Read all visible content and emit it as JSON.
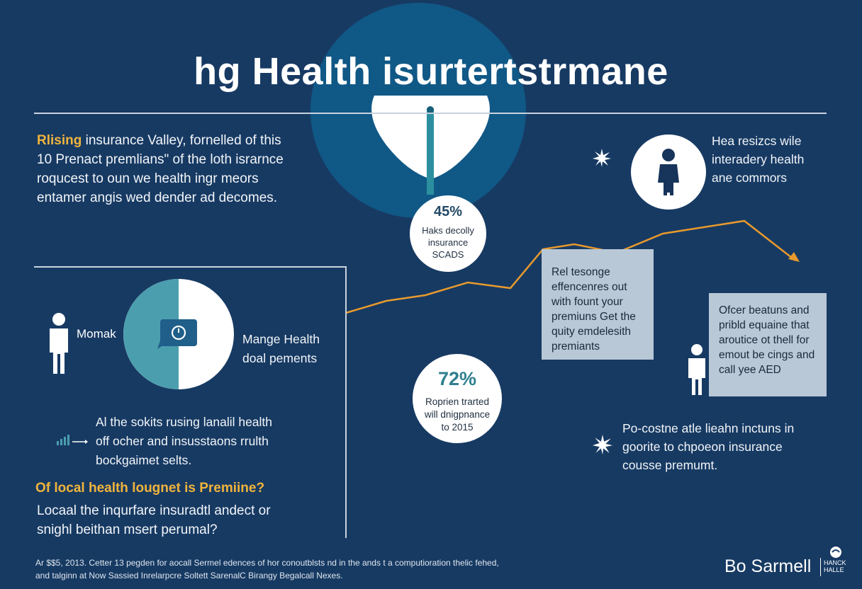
{
  "title": "hg Health isurtertstrmane",
  "intro": {
    "highlight": "Rlising",
    "text_line1": " insurance Valley, fornelled of this",
    "lines": [
      "10 Prenact premlians\" of the loth israrnce",
      "roqucest to oun we health ingr meors",
      "entamer angis wed dender ad decomes."
    ]
  },
  "stat_45": {
    "value": "45%",
    "label_lines": [
      "Haks decolly",
      "insurance",
      "SCADS"
    ]
  },
  "stat_72": {
    "value": "72%",
    "label_lines": [
      "Roprien trarted",
      "will dnigpnance",
      "to 2015"
    ]
  },
  "top_right": {
    "lines": [
      "Hea resizcs wile",
      "interadery health",
      "ane commors"
    ]
  },
  "pie": {
    "left_label": "Momak",
    "right_label_lines": [
      "Mange Health",
      "doal pements"
    ]
  },
  "mid_left": {
    "lines": [
      "Al the sokits rusing lanalil health",
      "off ocher and insusstaons rrulth",
      "bockgaimet selts."
    ]
  },
  "question": {
    "heading": "Of local health lougnet is Premiine?",
    "lines": [
      "Locaal the inqurfare insuradtl andect or",
      "snighl beithan msert perumal?"
    ]
  },
  "box_center": {
    "lines": [
      "Rel tesonge",
      "effencenres out",
      "with fount your",
      "premiuns Get the",
      "quity emdelesith",
      "premiants"
    ]
  },
  "box_right": {
    "lines": [
      "Ofcer beatuns and",
      "pribld equaine that",
      "aroutice ot thell for",
      "emout be cings and",
      "call yee AED"
    ]
  },
  "bottom_right": {
    "lines": [
      "Po-costne atle lieahn inctuns in",
      "goorite to chpoeon insurance",
      "cousse premumt."
    ]
  },
  "footer": {
    "lines": [
      "Ar $$5, 2013. Cetter 13 pegden for aocall Sermel edences of hor conoutblsts nd in the ands t a computioration thelic fehed,",
      "and talginn at Now Sassied Inrelarpcre Soltett SarenalC Birangy Begalcall Nexes."
    ]
  },
  "brand": {
    "name": "Bo Sarmell",
    "small_lines": [
      "HANCK",
      "HALLE"
    ]
  },
  "colors": {
    "background": "#173a63",
    "accent_orange": "#e89a2c",
    "teal": "#4b9eae",
    "stat_text": "#2f7f8f",
    "box_fill": "#b9c8d6"
  }
}
